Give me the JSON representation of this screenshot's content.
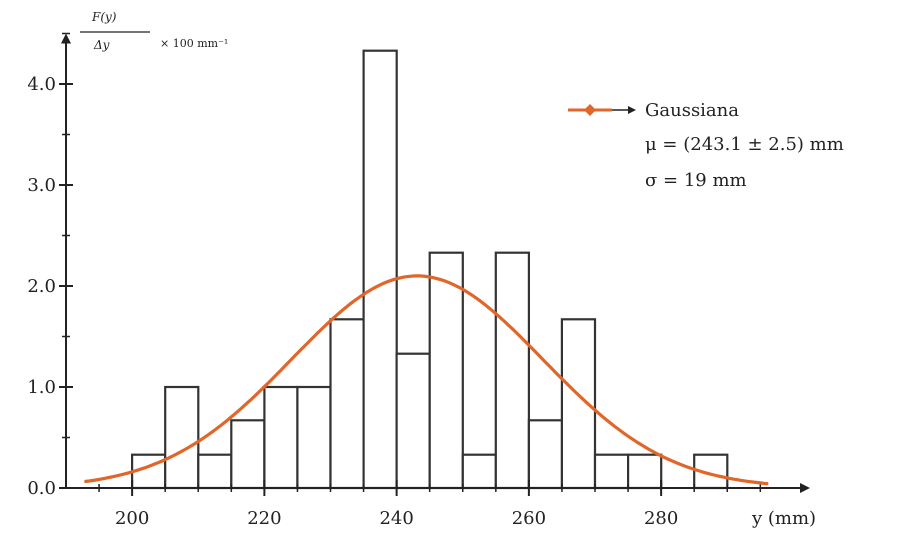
{
  "chart_data": {
    "type": "bar",
    "title": "",
    "ylabel": {
      "numerator": "F(y)",
      "denominator": "Δy",
      "factor": "× 100 mm⁻¹"
    },
    "xlabel": "y (mm)",
    "xlim": [
      190,
      301
    ],
    "ylim": [
      0,
      4.5
    ],
    "x_ticks": [
      200,
      220,
      240,
      260,
      280
    ],
    "x_tick_labels": [
      "200",
      "220",
      "240",
      "260",
      "280"
    ],
    "y_ticks": [
      0,
      1,
      2,
      3,
      4
    ],
    "y_tick_labels": [
      "0.0",
      "1.0",
      "2.0",
      "3.0",
      "4.0"
    ],
    "bin_width": 5,
    "histogram": {
      "bin_edges": [
        190,
        195,
        200,
        205,
        210,
        215,
        220,
        225,
        230,
        235,
        240,
        245,
        250,
        255,
        260,
        265,
        270,
        275,
        280,
        285,
        290,
        295,
        300
      ],
      "values": [
        0.0,
        0.0,
        0.33,
        1.0,
        0.33,
        0.67,
        1.0,
        1.0,
        1.67,
        4.33,
        1.33,
        2.33,
        0.33,
        2.33,
        0.67,
        1.67,
        0.33,
        0.33,
        0.0,
        0.33,
        0.0,
        0.0
      ]
    },
    "series": [
      {
        "name": "Gaussiana",
        "mu": 243.1,
        "sigma": 19,
        "peak": 2.1,
        "color": "#e0662a"
      }
    ],
    "legend": {
      "position": "top-right",
      "title": "Gaussiana",
      "lines": [
        "μ = (243.1 ± 2.5) mm",
        "σ = 19 mm"
      ]
    },
    "grid": false
  }
}
